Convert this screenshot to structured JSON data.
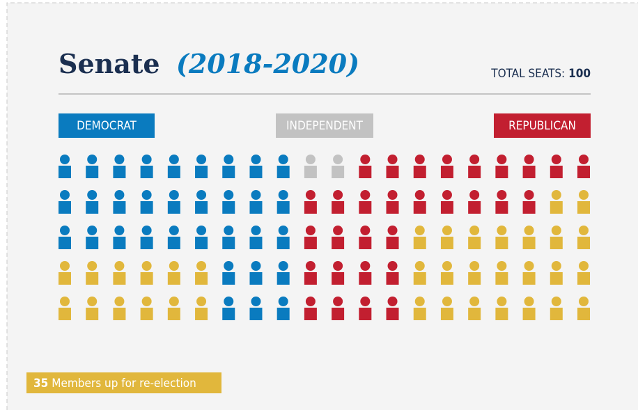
{
  "chart_data": {
    "type": "pictogram",
    "title": "Senate",
    "subtitle": "(2018-2020)",
    "total_label": "TOTAL SEATS:",
    "total": 100,
    "series": [
      {
        "name": "DEMOCRAT",
        "color": "#0a7bbf"
      },
      {
        "name": "INDEPENDENT",
        "color": "#c2c2c2"
      },
      {
        "name": "REPUBLICAN",
        "color": "#c21f30"
      },
      {
        "name": "Members up for re-election",
        "color": "#e1b73c",
        "count": 35
      }
    ],
    "rows": [
      [
        [
          0,
          9
        ],
        [
          1,
          2
        ],
        [
          2,
          9
        ]
      ],
      [
        [
          0,
          9
        ],
        [
          2,
          9
        ],
        [
          3,
          2
        ]
      ],
      [
        [
          0,
          9
        ],
        [
          2,
          4
        ],
        [
          3,
          7
        ]
      ],
      [
        [
          3,
          6
        ],
        [
          0,
          3
        ],
        [
          2,
          4
        ],
        [
          3,
          7
        ]
      ],
      [
        [
          3,
          6
        ],
        [
          0,
          3
        ],
        [
          2,
          4
        ],
        [
          3,
          7
        ]
      ]
    ]
  }
}
